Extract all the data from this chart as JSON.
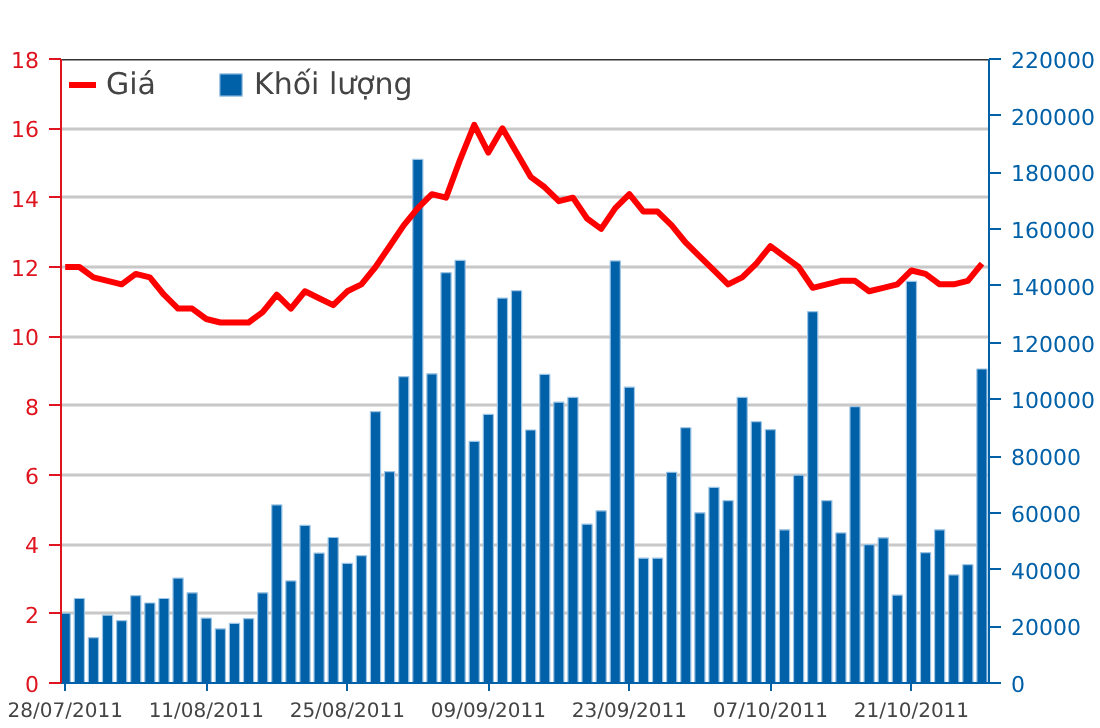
{
  "chart_data": {
    "type": "bar",
    "categories": [
      "28/07/2011",
      null,
      null,
      null,
      null,
      null,
      null,
      null,
      null,
      null,
      "11/08/2011",
      null,
      null,
      null,
      null,
      null,
      null,
      null,
      null,
      null,
      "25/08/2011",
      null,
      null,
      null,
      null,
      null,
      null,
      null,
      null,
      null,
      "09/09/2011",
      null,
      null,
      null,
      null,
      null,
      null,
      null,
      null,
      null,
      "23/09/2011",
      null,
      null,
      null,
      null,
      null,
      null,
      null,
      null,
      null,
      "07/10/2011",
      null,
      null,
      null,
      null,
      null,
      null,
      null,
      null,
      null,
      "21/10/2011",
      null,
      null,
      null,
      null,
      null
    ],
    "series": [
      {
        "name": "Giá",
        "type": "line",
        "color": "#ff0000",
        "values": [
          12.0,
          12.0,
          11.7,
          11.6,
          11.5,
          11.8,
          11.7,
          11.2,
          10.8,
          10.8,
          10.5,
          10.4,
          10.4,
          10.4,
          10.7,
          11.2,
          10.8,
          11.3,
          11.1,
          10.9,
          11.3,
          11.5,
          12.0,
          12.6,
          13.2,
          13.7,
          14.1,
          14.0,
          15.1,
          16.1,
          15.3,
          16.0,
          15.3,
          14.6,
          14.3,
          13.9,
          14.0,
          13.4,
          13.1,
          13.7,
          14.1,
          13.6,
          13.6,
          13.2,
          12.7,
          12.3,
          11.9,
          11.5,
          11.7,
          12.1,
          12.6,
          12.3,
          12.0,
          11.4,
          11.5,
          11.6,
          11.6,
          11.3,
          11.4,
          11.5,
          11.9,
          11.8,
          11.5,
          11.5,
          11.6,
          12.1
        ]
      },
      {
        "name": "Khối lượng",
        "axis": "y2",
        "color": "#0060a8",
        "values": [
          24600,
          29800,
          16000,
          23900,
          22000,
          30800,
          28200,
          29800,
          37000,
          31800,
          22900,
          19100,
          21000,
          22700,
          31800,
          62800,
          36000,
          55600,
          45800,
          51300,
          42200,
          44900,
          95700,
          74500,
          108000,
          184600,
          109000,
          144700,
          149000,
          85200,
          94700,
          135700,
          138300,
          89200,
          108800,
          99000,
          100700,
          56000,
          60700,
          148800,
          104300,
          44000,
          44000,
          74300,
          90000,
          60000,
          69000,
          64300,
          100700,
          92100,
          89300,
          54000,
          73300,
          130900,
          64300,
          52900,
          97400,
          48800,
          51200,
          31000,
          141600,
          46000,
          54000,
          38100,
          41700,
          110700
        ]
      }
    ],
    "ylim": [
      0,
      18
    ],
    "yticks": [
      0,
      2,
      4,
      6,
      8,
      10,
      12,
      14,
      16,
      18
    ],
    "y2lim": [
      0,
      220000
    ],
    "y2ticks": [
      0,
      20000,
      40000,
      60000,
      80000,
      100000,
      120000,
      140000,
      160000,
      180000,
      200000,
      220000
    ],
    "grid": "y",
    "legend": "top left",
    "marker": "none",
    "line_style": "solid"
  }
}
